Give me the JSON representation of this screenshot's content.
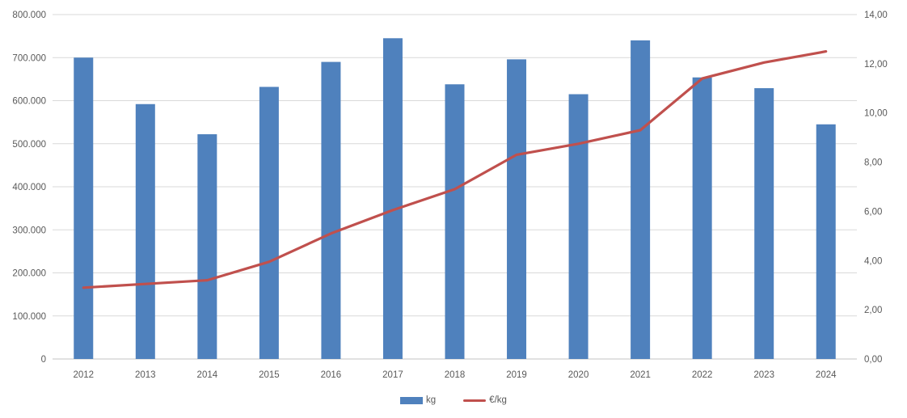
{
  "chart": {
    "background": "#FFFFFF",
    "gridline_color": "#D9D9D9",
    "axis_line_color": "#C3C3C3",
    "tick_label_color": "#595959"
  },
  "chart_data": {
    "type": "bar",
    "subtype": "combo-bar-line-dual-axis",
    "title": "",
    "xlabel": "",
    "ylabel_left": "kg",
    "ylabel_right": "€/kg",
    "grid": true,
    "legend_position": "bottom",
    "categories": [
      "2012",
      "2013",
      "2014",
      "2015",
      "2016",
      "2017",
      "2018",
      "2019",
      "2020",
      "2021",
      "2022",
      "2023",
      "2024"
    ],
    "series": [
      {
        "name": "kg",
        "type": "bar",
        "axis": "left",
        "color": "#4F81BD",
        "values": [
          700000,
          592000,
          522000,
          632000,
          690000,
          745000,
          638000,
          696000,
          615000,
          740000,
          654000,
          629000,
          545000
        ]
      },
      {
        "name": "€/kg",
        "type": "line",
        "axis": "right",
        "color": "#C0504D",
        "values": [
          2.9,
          3.05,
          3.2,
          3.95,
          5.1,
          6.05,
          6.9,
          8.3,
          8.75,
          9.3,
          11.4,
          12.05,
          12.5
        ]
      }
    ],
    "left_axis": {
      "min": 0,
      "max": 800000,
      "step": 100000,
      "tick_labels": [
        "0",
        "100.000",
        "200.000",
        "300.000",
        "400.000",
        "500.000",
        "600.000",
        "700.000",
        "800.000"
      ]
    },
    "right_axis": {
      "min": 0,
      "max": 14,
      "step": 2,
      "tick_labels": [
        "0,00",
        "2,00",
        "4,00",
        "6,00",
        "8,00",
        "10,00",
        "12,00",
        "14,00"
      ]
    }
  }
}
